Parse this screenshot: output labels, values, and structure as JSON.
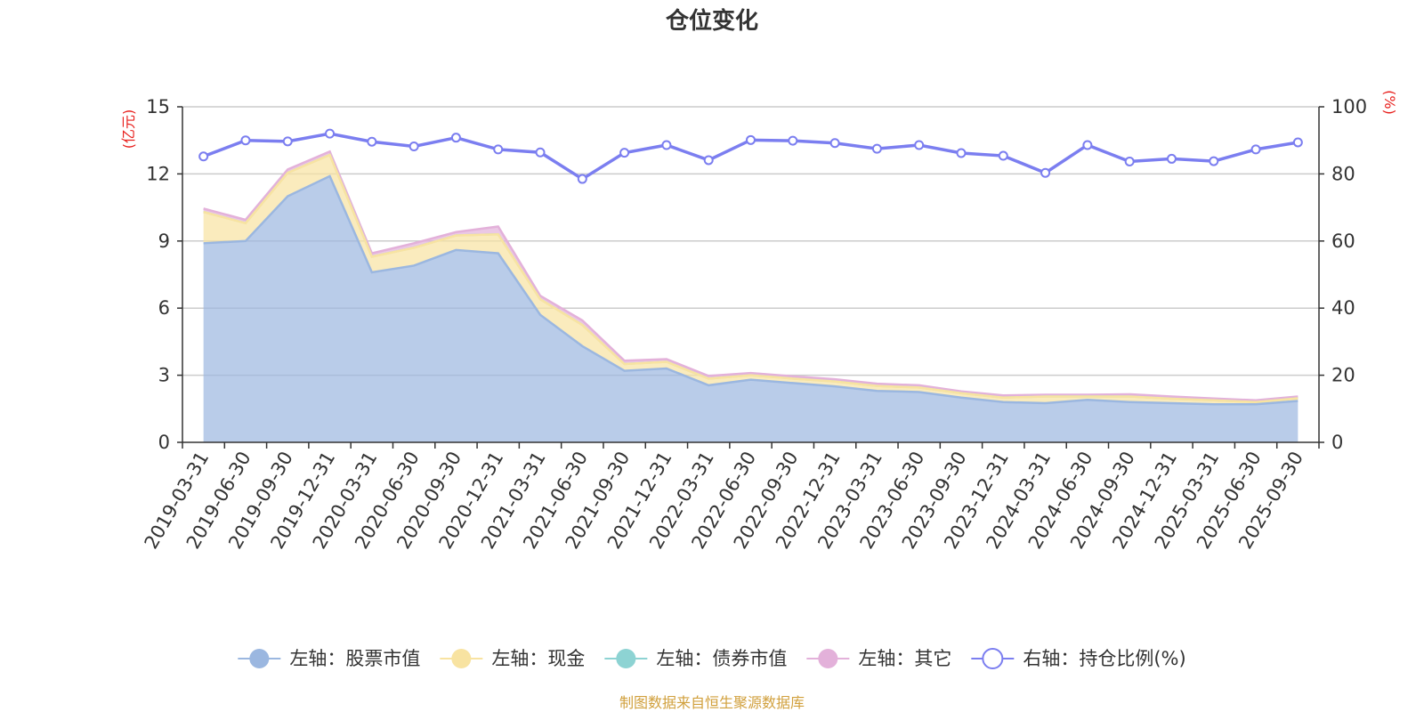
{
  "chart_data": {
    "type": "area",
    "title": "仓位变化",
    "left_unit": "(亿元)",
    "right_unit": "(%)",
    "ylim_left": [
      0,
      15
    ],
    "yticks_left": [
      "0",
      "3",
      "6",
      "9",
      "12",
      "15"
    ],
    "ylim_right": [
      0,
      100
    ],
    "yticks_right": [
      "0",
      "20",
      "40",
      "60",
      "80",
      "100"
    ],
    "grid": true,
    "legend_placement": "bottom",
    "x": [
      "2019-03-31",
      "2019-06-30",
      "2019-09-30",
      "2019-12-31",
      "2020-03-31",
      "2020-06-30",
      "2020-09-30",
      "2020-12-31",
      "2021-03-31",
      "2021-06-30",
      "2021-09-30",
      "2021-12-31",
      "2022-03-31",
      "2022-06-30",
      "2022-09-30",
      "2022-12-31",
      "2023-03-31",
      "2023-06-30",
      "2023-09-30",
      "2023-12-31",
      "2024-03-31",
      "2024-06-30",
      "2024-09-30",
      "2024-12-31",
      "2025-03-31",
      "2025-06-30",
      "2025-09-30"
    ],
    "series": [
      {
        "name": "左轴：股票市值",
        "axis": "left",
        "color": "#9bb7e0",
        "values": [
          8.9,
          9.0,
          11.0,
          11.9,
          7.6,
          7.9,
          8.6,
          8.45,
          5.7,
          4.3,
          3.2,
          3.3,
          2.55,
          2.8,
          2.65,
          2.5,
          2.3,
          2.25,
          2.0,
          1.8,
          1.75,
          1.9,
          1.8,
          1.75,
          1.7,
          1.7,
          1.85
        ]
      },
      {
        "name": "左轴：现金",
        "axis": "left",
        "color": "#f8e3a1",
        "values": [
          1.4,
          0.8,
          1.05,
          0.95,
          0.7,
          0.8,
          0.65,
          0.85,
          0.7,
          0.95,
          0.3,
          0.3,
          0.3,
          0.2,
          0.2,
          0.22,
          0.22,
          0.2,
          0.2,
          0.2,
          0.3,
          0.15,
          0.25,
          0.2,
          0.18,
          0.1,
          0.12
        ]
      },
      {
        "name": "左轴：债券市值",
        "axis": "left",
        "color": "#8dd3d3",
        "values": [
          0,
          0,
          0,
          0,
          0,
          0,
          0,
          0,
          0,
          0,
          0,
          0,
          0,
          0,
          0,
          0,
          0,
          0,
          0,
          0,
          0,
          0,
          0,
          0,
          0,
          0,
          0
        ]
      },
      {
        "name": "左轴：其它",
        "axis": "left",
        "color": "#e3b1da",
        "values": [
          0.15,
          0.15,
          0.15,
          0.15,
          0.15,
          0.2,
          0.15,
          0.35,
          0.15,
          0.2,
          0.15,
          0.12,
          0.12,
          0.1,
          0.1,
          0.1,
          0.1,
          0.1,
          0.08,
          0.1,
          0.08,
          0.08,
          0.1,
          0.1,
          0.08,
          0.08,
          0.08
        ]
      },
      {
        "name": "右轴：持仓比例(%)",
        "axis": "right",
        "color": "#7b7ef0",
        "values": [
          85.2,
          90.0,
          89.7,
          92.0,
          89.6,
          88.2,
          90.8,
          87.3,
          86.4,
          78.5,
          86.3,
          88.6,
          84.1,
          90.1,
          89.9,
          89.2,
          87.5,
          88.6,
          86.2,
          85.4,
          80.3,
          88.6,
          83.7,
          84.5,
          83.8,
          87.3,
          89.4
        ]
      }
    ]
  },
  "source_text": "制图数据来自恒生聚源数据库",
  "colors": {
    "unit": "#e8201d",
    "source": "#d1a03d",
    "grid": "#cccccc",
    "axis": "#333333"
  }
}
